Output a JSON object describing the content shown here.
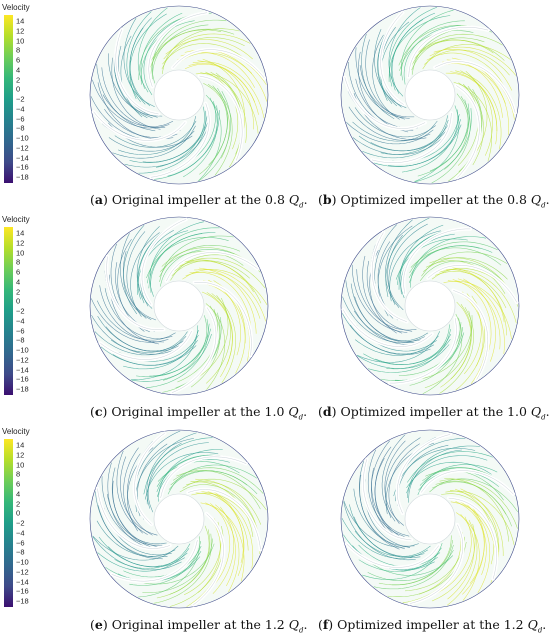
{
  "colorbar": {
    "title": "Velocity",
    "ticks": [
      "14",
      "12",
      "10",
      "8",
      "6",
      "4",
      "2",
      "0",
      "−2",
      "−4",
      "−6",
      "−8",
      "−10",
      "−12",
      "−14",
      "−16",
      "−18"
    ],
    "range": [
      -19,
      16
    ],
    "colormap": [
      "#3b0f70",
      "#3e4a89",
      "#31688e",
      "#26828e",
      "#1f9e89",
      "#35b779",
      "#6ece58",
      "#b5de2b",
      "#fde725"
    ]
  },
  "panels": [
    {
      "letter": "a",
      "text": "Original impeller at the 0.8 ",
      "q": "Q",
      "sub": "d",
      "end": "."
    },
    {
      "letter": "b",
      "text": "Optimized impeller at the 0.8 ",
      "q": "Q",
      "sub": "d",
      "end": "."
    },
    {
      "letter": "c",
      "text": "Original impeller at the 1.0 ",
      "q": "Q",
      "sub": "d",
      "end": "."
    },
    {
      "letter": "d",
      "text": "Optimized impeller at the 1.0 ",
      "q": "Q",
      "sub": "d",
      "end": "."
    },
    {
      "letter": "e",
      "text": "Original impeller at the 1.2 ",
      "q": "Q",
      "sub": "d",
      "end": "."
    },
    {
      "letter": "f",
      "text": "Optimized impeller at the 1.2 ",
      "q": "Q",
      "sub": "d",
      "end": "."
    }
  ]
}
